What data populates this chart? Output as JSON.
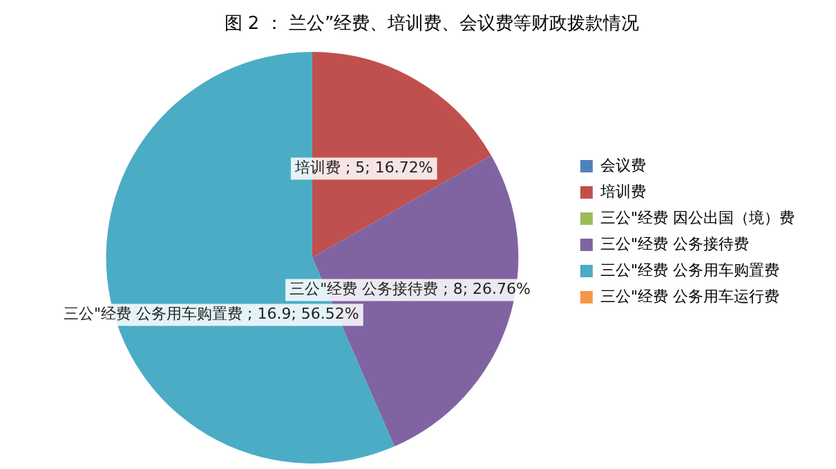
{
  "chart_data": {
    "type": "pie",
    "title": "图 2 ： 兰公”经费、培训费、会议费等财政拨款情况",
    "categories": [
      "会议费",
      "培训费",
      "三公\"经费 因公出国（境）费",
      "三公\"经费 公务接待费",
      "三公\"经费 公务用车购置费",
      "三公\"经费 公务用车运行费"
    ],
    "values": [
      0,
      5,
      0,
      8,
      16.9,
      0
    ],
    "colors": [
      "#4f81bd",
      "#c0504d",
      "#9bbb59",
      "#8064a2",
      "#4bacc6",
      "#f79646"
    ],
    "value_labels": [
      null,
      "培训费 ; 5; 16.72%",
      null,
      "三公\"经费 公务接待费 ; 8; 26.76%",
      "三公\"经费 公务用车购置费 ; 16.9; 56.52%",
      null
    ],
    "legend": "right"
  }
}
